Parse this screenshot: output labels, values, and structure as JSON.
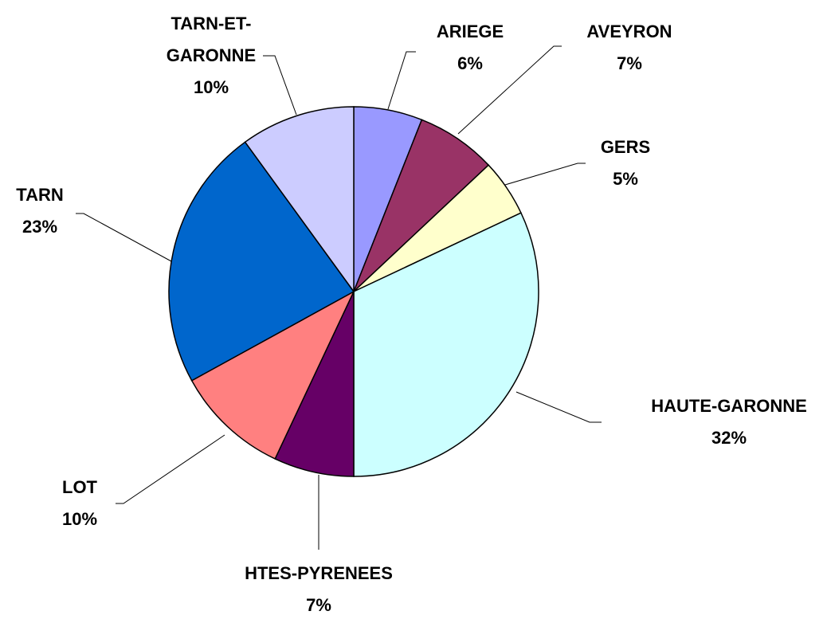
{
  "chart_data": {
    "type": "pie",
    "categories": [
      "ARIEGE",
      "AVEYRON",
      "GERS",
      "HAUTE-GARONNE",
      "HTES-PYRENEES",
      "LOT",
      "TARN",
      "TARN-ET-GARONNE"
    ],
    "values": [
      6,
      7,
      5,
      32,
      7,
      10,
      23,
      10
    ],
    "value_labels": [
      "6%",
      "7%",
      "5%",
      "32%",
      "7%",
      "10%",
      "23%",
      "10%"
    ],
    "colors": [
      "#9999ff",
      "#993366",
      "#ffffcc",
      "#ccffff",
      "#660066",
      "#ff8080",
      "#0066cc",
      "#ccccff"
    ]
  }
}
